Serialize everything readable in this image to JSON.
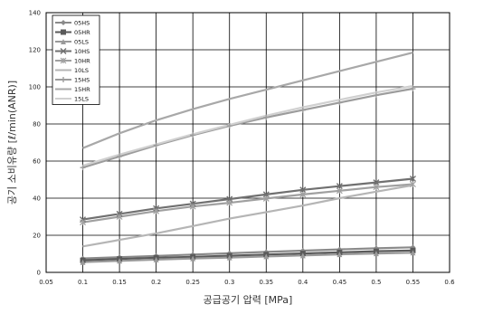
{
  "chart_data": {
    "type": "line",
    "title": "",
    "xlabel": "공급공기 압력 [MPa]",
    "ylabel": "공기 소비유량 [ℓ/min(ANR)]",
    "xlim": [
      0.05,
      0.6
    ],
    "ylim": [
      0,
      140
    ],
    "x_ticks": [
      "0.05",
      "0.1",
      "0.15",
      "0.2",
      "0.25",
      "0.3",
      "0.35",
      "0.4",
      "0.45",
      "0.5",
      "0.55",
      "0.6"
    ],
    "y_ticks": [
      "0",
      "20",
      "40",
      "60",
      "80",
      "100",
      "120",
      "140"
    ],
    "grid": true,
    "legend_position": "top-left",
    "x": [
      0.1,
      0.15,
      0.2,
      0.25,
      0.3,
      0.35,
      0.4,
      0.45,
      0.5,
      0.55
    ],
    "series": [
      {
        "name": "05HS",
        "marker": "diamond",
        "color": "#8a8a8a",
        "values": [
          7.5,
          8.2,
          8.9,
          9.6,
          10.3,
          11.0,
          11.7,
          12.4,
          13.0,
          13.5
        ]
      },
      {
        "name": "05HR",
        "marker": "square",
        "color": "#5a5a5a",
        "values": [
          6.5,
          7.2,
          7.9,
          8.4,
          9.0,
          9.6,
          10.2,
          10.8,
          11.4,
          11.8
        ]
      },
      {
        "name": "05LS",
        "marker": "triangle",
        "color": "#9a9a9a",
        "values": [
          5.5,
          6.2,
          6.9,
          7.5,
          8.0,
          8.6,
          9.1,
          9.7,
          10.2,
          10.6
        ]
      },
      {
        "name": "10HS",
        "marker": "x",
        "color": "#707070",
        "values": [
          28.5,
          31.5,
          34.5,
          37.0,
          39.5,
          42.0,
          44.5,
          46.5,
          48.5,
          50.5
        ]
      },
      {
        "name": "10HR",
        "marker": "star",
        "color": "#a0a0a0",
        "values": [
          27.0,
          30.0,
          33.0,
          35.5,
          37.5,
          39.8,
          42.0,
          44.0,
          46.0,
          47.5
        ]
      },
      {
        "name": "10LS",
        "marker": "none",
        "color": "#b5b5b5",
        "values": [
          14.0,
          17.5,
          21.0,
          25.0,
          29.0,
          32.5,
          36.0,
          40.0,
          43.5,
          47.0
        ]
      },
      {
        "name": "15HS",
        "marker": "plus",
        "color": "#9c9c9c",
        "values": [
          56.5,
          62.5,
          68.5,
          74.0,
          79.0,
          83.5,
          87.5,
          91.5,
          95.5,
          99.0
        ]
      },
      {
        "name": "15HR",
        "marker": "none",
        "color": "#a8a8a8",
        "values": [
          67.0,
          75.0,
          82.0,
          88.0,
          93.5,
          98.5,
          103.5,
          108.5,
          113.5,
          118.5
        ]
      },
      {
        "name": "15LS",
        "marker": "none",
        "color": "#d0d0d0",
        "values": [
          57.5,
          63.5,
          69.0,
          74.5,
          79.5,
          84.5,
          89.0,
          93.0,
          97.0,
          100.5
        ]
      }
    ]
  }
}
